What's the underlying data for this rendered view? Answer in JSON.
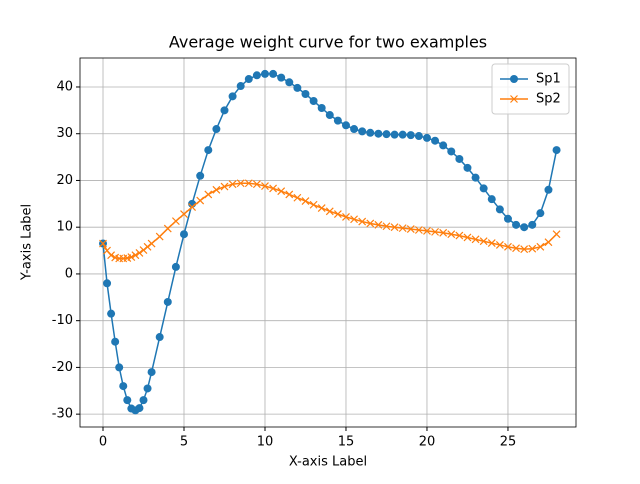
{
  "chart_data": {
    "type": "line",
    "title": "Average weight curve for two examples",
    "xlabel": "X-axis Label",
    "ylabel": "Y-axis Label",
    "x": [
      0,
      0.25,
      0.5,
      0.75,
      1,
      1.25,
      1.5,
      1.75,
      2,
      2.25,
      2.5,
      2.75,
      3,
      3.5,
      4,
      4.5,
      5,
      5.5,
      6,
      6.5,
      7,
      7.5,
      8,
      8.5,
      9,
      9.5,
      10,
      10.5,
      11,
      11.5,
      12,
      12.5,
      13,
      13.5,
      14,
      14.5,
      15,
      15.5,
      16,
      16.5,
      17,
      17.5,
      18,
      18.5,
      19,
      19.5,
      20,
      20.5,
      21,
      21.5,
      22,
      22.5,
      23,
      23.5,
      24,
      24.5,
      25,
      25.5,
      26,
      26.5,
      27,
      27.5,
      28
    ],
    "series": [
      {
        "name": "Sp1",
        "color": "#1f77b4",
        "marker": "o",
        "values": [
          6.5,
          -2,
          -8.5,
          -14.5,
          -20,
          -24,
          -27,
          -28.8,
          -29.2,
          -28.7,
          -27,
          -24.5,
          -21,
          -13.5,
          -6,
          1.5,
          8.5,
          15,
          21,
          26.5,
          31,
          35,
          38,
          40.2,
          41.7,
          42.5,
          42.8,
          42.8,
          42,
          41,
          39.8,
          38.5,
          37,
          35.5,
          34,
          32.8,
          31.8,
          31,
          30.5,
          30.2,
          30,
          29.9,
          29.8,
          29.8,
          29.7,
          29.5,
          29.1,
          28.5,
          27.5,
          26.2,
          24.6,
          22.7,
          20.6,
          18.3,
          16,
          13.8,
          11.8,
          10.5,
          10,
          10.5,
          13,
          18,
          26.5
        ]
      },
      {
        "name": "Sp2",
        "color": "#ff7f0e",
        "marker": "x",
        "values": [
          6.5,
          5,
          4,
          3.5,
          3.3,
          3.3,
          3.4,
          3.6,
          4,
          4.5,
          5.1,
          5.8,
          6.5,
          8,
          9.7,
          11.3,
          12.8,
          14.3,
          15.7,
          17,
          18,
          18.7,
          19.2,
          19.4,
          19.4,
          19.2,
          18.8,
          18.3,
          17.7,
          17,
          16.3,
          15.6,
          14.8,
          14.1,
          13.4,
          12.8,
          12.2,
          11.7,
          11.2,
          10.8,
          10.5,
          10.2,
          10,
          9.8,
          9.6,
          9.4,
          9.2,
          9,
          8.8,
          8.5,
          8.2,
          7.8,
          7.4,
          7,
          6.6,
          6.2,
          5.8,
          5.5,
          5.3,
          5.4,
          5.8,
          6.8,
          8.5
        ]
      }
    ],
    "xlim": [
      -1.42,
      29.2
    ],
    "ylim": [
      -32.75,
      46.2
    ],
    "xticks": [
      0,
      5,
      10,
      15,
      20,
      25
    ],
    "yticks": [
      -30,
      -20,
      -10,
      0,
      10,
      20,
      30,
      40
    ],
    "grid": true,
    "legend": "upper right"
  }
}
